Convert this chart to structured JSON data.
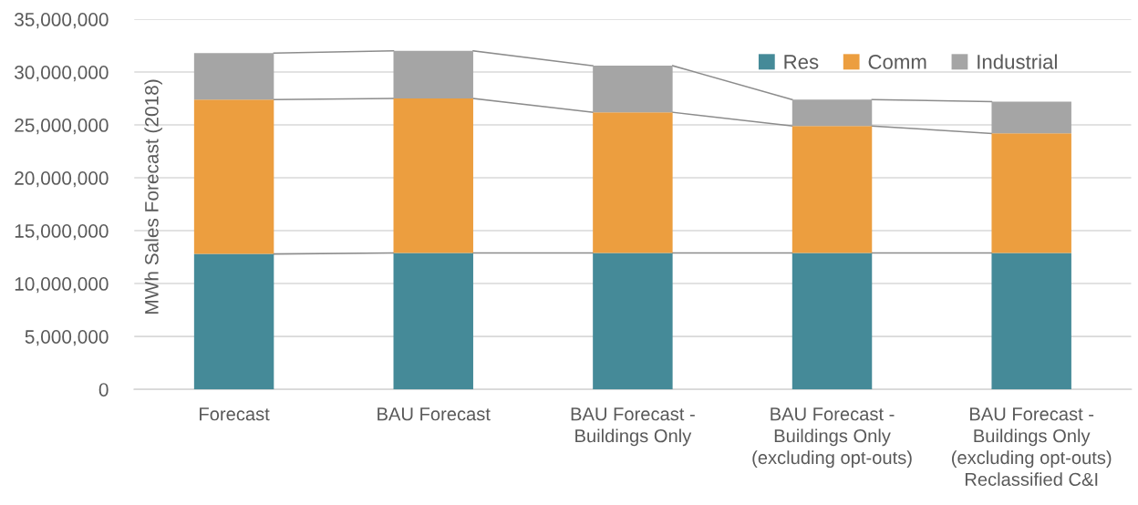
{
  "chart_data": {
    "type": "bar",
    "stacked": true,
    "categories": [
      "Forecast",
      "BAU Forecast",
      "BAU Forecast -\nBuildings Only",
      "BAU Forecast -\nBuildings Only\n(excluding opt-outs)",
      "BAU Forecast -\nBuildings Only\n(excluding opt-outs)\nReclassified C&I"
    ],
    "series": [
      {
        "name": "Res",
        "color": "#458a98",
        "values": [
          12800000,
          12900000,
          12900000,
          12900000,
          12900000
        ]
      },
      {
        "name": "Comm",
        "color": "#ec9e3f",
        "values": [
          14600000,
          14600000,
          13300000,
          12000000,
          11300000
        ]
      },
      {
        "name": "Industrial",
        "color": "#a5a5a5",
        "values": [
          4400000,
          4500000,
          4400000,
          2500000,
          3000000
        ]
      }
    ],
    "ylabel": "MWh Sales Forecast (2018)",
    "ylim": [
      0,
      35000000
    ],
    "yticks": [
      0,
      {
        "value": 5000000,
        "label": "5,000,000"
      },
      {
        "value": 10000000,
        "label": "10,000,000"
      },
      {
        "value": 15000000,
        "label": "15,000,000"
      },
      {
        "value": 20000000,
        "label": "20,000,000"
      },
      {
        "value": 25000000,
        "label": "25,000,000"
      },
      {
        "value": 30000000,
        "label": "30,000,000"
      },
      {
        "value": 35000000,
        "label": "35,000,000"
      }
    ],
    "grid": "y",
    "legend": "top right"
  }
}
